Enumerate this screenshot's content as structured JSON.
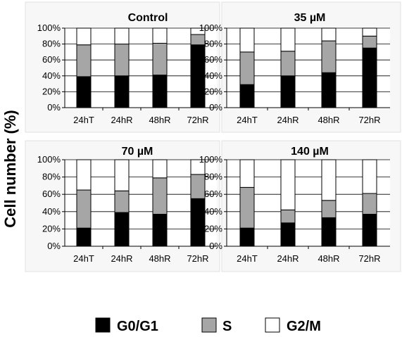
{
  "chart_data": {
    "type": "bar",
    "stacked": true,
    "ylabel": "Cell number (%)",
    "ylim": [
      0,
      100
    ],
    "yticks": [
      "0%",
      "20%",
      "40%",
      "60%",
      "80%",
      "100%"
    ],
    "categories": [
      "24hT",
      "24hR",
      "48hR",
      "72hR"
    ],
    "legend": {
      "position": "bottom",
      "items": [
        {
          "name": "G0/G1",
          "color": "#000000"
        },
        {
          "name": "S",
          "color": "#a6a6a6"
        },
        {
          "name": "G2/M",
          "color": "#ffffff"
        }
      ]
    },
    "panels": [
      {
        "title": "Control",
        "series": [
          {
            "name": "G0/G1",
            "color": "#000000",
            "values": [
              39,
              40,
              41,
              79
            ]
          },
          {
            "name": "S",
            "color": "#a6a6a6",
            "values": [
              40,
              40,
              40,
              13
            ]
          },
          {
            "name": "G2/M",
            "color": "#ffffff",
            "values": [
              21,
              20,
              19,
              8
            ]
          }
        ]
      },
      {
        "title": "35 µM",
        "series": [
          {
            "name": "G0/G1",
            "color": "#000000",
            "values": [
              29,
              40,
              44,
              75
            ]
          },
          {
            "name": "S",
            "color": "#a6a6a6",
            "values": [
              41,
              31,
              40,
              15
            ]
          },
          {
            "name": "G2/M",
            "color": "#ffffff",
            "values": [
              30,
              29,
              16,
              10
            ]
          }
        ]
      },
      {
        "title": "70 µM",
        "series": [
          {
            "name": "G0/G1",
            "color": "#000000",
            "values": [
              21,
              39,
              37,
              55
            ]
          },
          {
            "name": "S",
            "color": "#a6a6a6",
            "values": [
              44,
              25,
              42,
              28
            ]
          },
          {
            "name": "G2/M",
            "color": "#ffffff",
            "values": [
              35,
              36,
              21,
              17
            ]
          }
        ]
      },
      {
        "title": "140 µM",
        "series": [
          {
            "name": "G0/G1",
            "color": "#000000",
            "values": [
              21,
              27,
              33,
              37
            ]
          },
          {
            "name": "S",
            "color": "#a6a6a6",
            "values": [
              47,
              15,
              20,
              24
            ]
          },
          {
            "name": "G2/M",
            "color": "#ffffff",
            "values": [
              32,
              58,
              47,
              39
            ]
          }
        ]
      }
    ]
  }
}
